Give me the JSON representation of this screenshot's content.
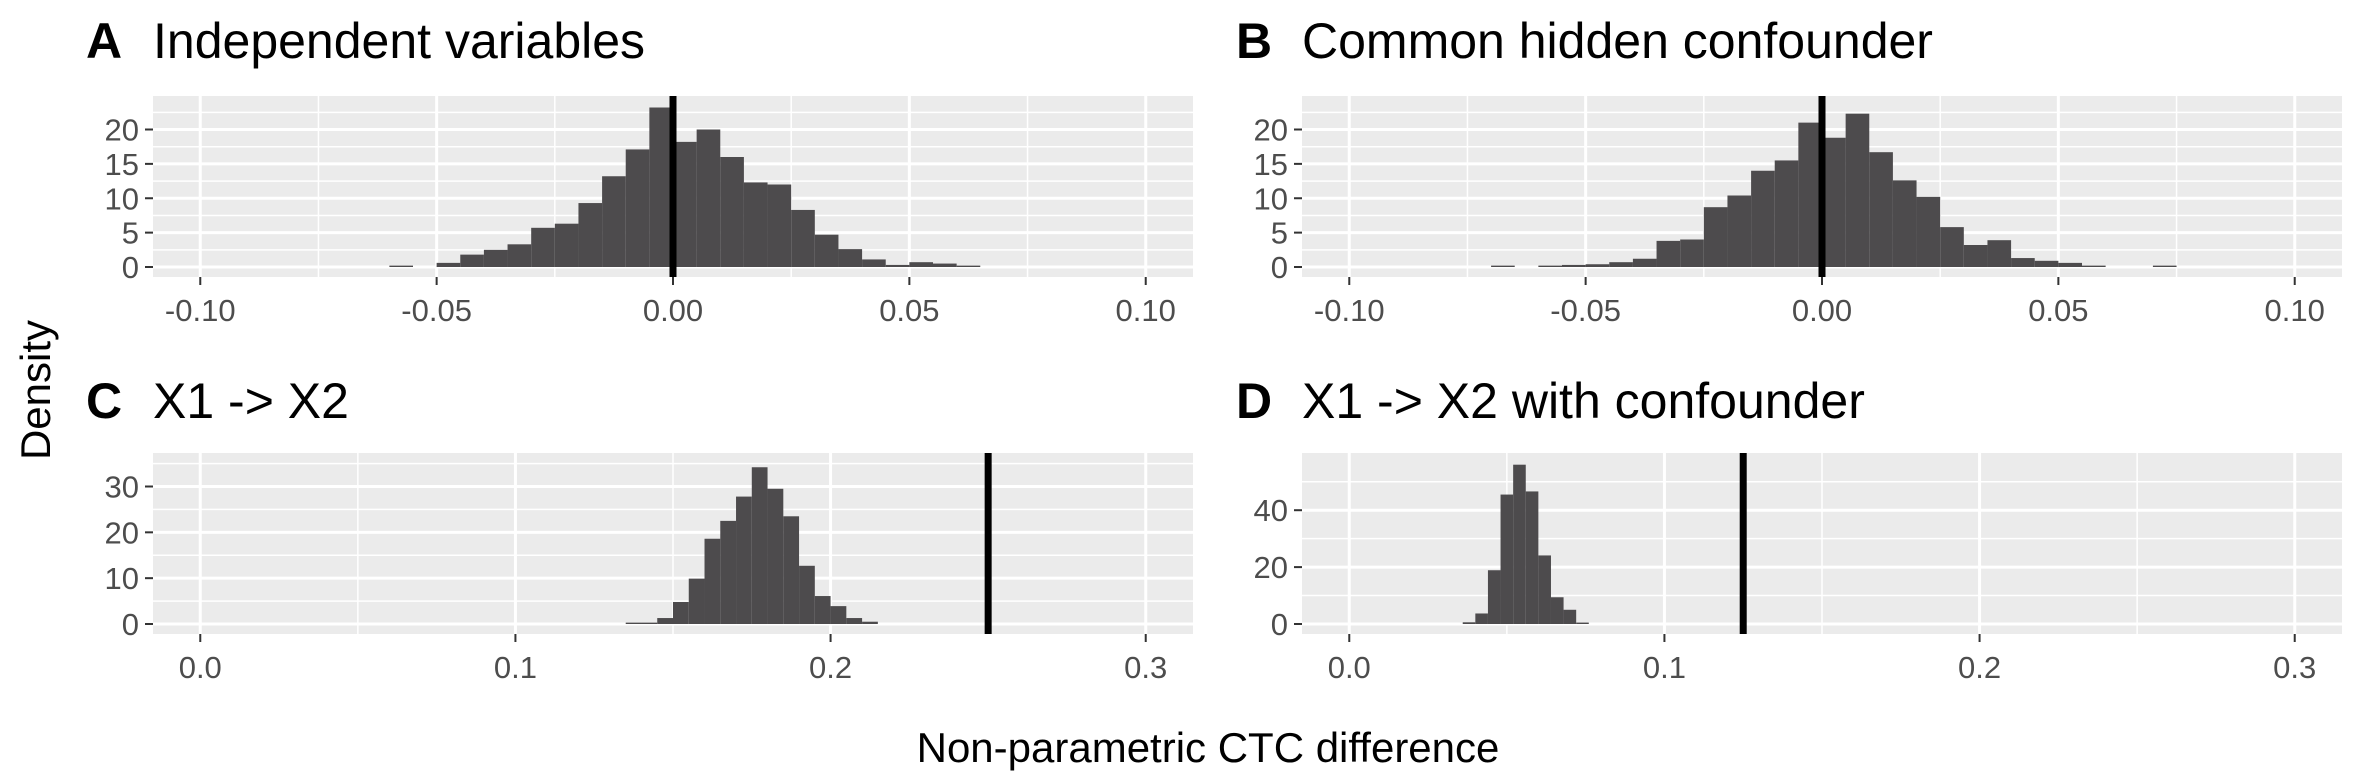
{
  "figure": {
    "ylabel": "Density",
    "xlabel": "Non-parametric CTC difference"
  },
  "colors": {
    "panel_bg": "#ebebeb",
    "grid_major": "#ffffff",
    "bar_fill": "#4d4b4d",
    "vline": "#000000",
    "tick_text": "#4d4d4d"
  },
  "chart_data": [
    {
      "type": "bar",
      "panel": "A",
      "title": "Independent variables",
      "xlim": [
        -0.11,
        0.11
      ],
      "ylim": [
        0,
        24
      ],
      "x_ticks": [
        -0.1,
        -0.05,
        0.0,
        0.05,
        0.1
      ],
      "x_tick_labels": [
        "-0.10",
        "-0.05",
        "0.00",
        "0.05",
        "0.10"
      ],
      "y_ticks": [
        0,
        5,
        10,
        15,
        20
      ],
      "y_tick_labels": [
        "0",
        "5",
        "10",
        "15",
        "20"
      ],
      "vline": 0.0,
      "bin_width": 0.005,
      "bins": [
        [
          -0.06,
          0.2
        ],
        [
          -0.05,
          0.6
        ],
        [
          -0.045,
          1.8
        ],
        [
          -0.04,
          2.5
        ],
        [
          -0.035,
          3.3
        ],
        [
          -0.03,
          5.7
        ],
        [
          -0.025,
          6.3
        ],
        [
          -0.02,
          9.3
        ],
        [
          -0.015,
          13.2
        ],
        [
          -0.01,
          17.1
        ],
        [
          -0.005,
          23.2
        ],
        [
          0.0,
          18.2
        ],
        [
          0.005,
          20.0
        ],
        [
          0.01,
          16.0
        ],
        [
          0.015,
          12.3
        ],
        [
          0.02,
          12.0
        ],
        [
          0.025,
          8.3
        ],
        [
          0.03,
          4.7
        ],
        [
          0.035,
          2.6
        ],
        [
          0.04,
          1.1
        ],
        [
          0.045,
          0.3
        ],
        [
          0.05,
          0.7
        ],
        [
          0.055,
          0.5
        ],
        [
          0.06,
          0.2
        ]
      ]
    },
    {
      "type": "bar",
      "panel": "B",
      "title": "Common hidden confounder",
      "xlim": [
        -0.11,
        0.11
      ],
      "ylim": [
        0,
        24
      ],
      "x_ticks": [
        -0.1,
        -0.05,
        0.0,
        0.05,
        0.1
      ],
      "x_tick_labels": [
        "-0.10",
        "-0.05",
        "0.00",
        "0.05",
        "0.10"
      ],
      "y_ticks": [
        0,
        5,
        10,
        15,
        20
      ],
      "y_tick_labels": [
        "0",
        "5",
        "10",
        "15",
        "20"
      ],
      "vline": 0.0,
      "bin_width": 0.005,
      "bins": [
        [
          -0.07,
          0.2
        ],
        [
          -0.06,
          0.2
        ],
        [
          -0.055,
          0.3
        ],
        [
          -0.05,
          0.4
        ],
        [
          -0.045,
          0.7
        ],
        [
          -0.04,
          1.2
        ],
        [
          -0.035,
          3.8
        ],
        [
          -0.03,
          4.0
        ],
        [
          -0.025,
          8.7
        ],
        [
          -0.02,
          10.4
        ],
        [
          -0.015,
          14.0
        ],
        [
          -0.01,
          15.5
        ],
        [
          -0.005,
          21.0
        ],
        [
          0.0,
          18.8
        ],
        [
          0.005,
          22.3
        ],
        [
          0.01,
          16.7
        ],
        [
          0.015,
          12.6
        ],
        [
          0.02,
          10.2
        ],
        [
          0.025,
          5.8
        ],
        [
          0.03,
          3.2
        ],
        [
          0.035,
          3.9
        ],
        [
          0.04,
          1.3
        ],
        [
          0.045,
          0.9
        ],
        [
          0.05,
          0.6
        ],
        [
          0.055,
          0.2
        ],
        [
          0.07,
          0.2
        ]
      ]
    },
    {
      "type": "bar",
      "panel": "C",
      "title": "X1 -> X2",
      "xlim": [
        -0.015,
        0.315
      ],
      "ylim": [
        0,
        36
      ],
      "x_ticks": [
        0.0,
        0.1,
        0.2,
        0.3
      ],
      "x_tick_labels": [
        "0.0",
        "0.1",
        "0.2",
        "0.3"
      ],
      "y_ticks": [
        0,
        10,
        20,
        30
      ],
      "y_tick_labels": [
        "0",
        "10",
        "20",
        "30"
      ],
      "vline": 0.25,
      "bin_width": 0.005,
      "bins": [
        [
          0.135,
          0.3
        ],
        [
          0.14,
          0.3
        ],
        [
          0.145,
          1.3
        ],
        [
          0.15,
          4.8
        ],
        [
          0.155,
          9.9
        ],
        [
          0.16,
          18.6
        ],
        [
          0.165,
          22.5
        ],
        [
          0.17,
          27.8
        ],
        [
          0.175,
          34.2
        ],
        [
          0.18,
          29.5
        ],
        [
          0.185,
          23.5
        ],
        [
          0.19,
          12.7
        ],
        [
          0.195,
          6.1
        ],
        [
          0.2,
          3.9
        ],
        [
          0.205,
          1.3
        ],
        [
          0.21,
          0.5
        ]
      ]
    },
    {
      "type": "bar",
      "panel": "D",
      "title": "X1 -> X2 with confounder",
      "xlim": [
        -0.015,
        0.315
      ],
      "ylim": [
        0,
        58
      ],
      "x_ticks": [
        0.0,
        0.1,
        0.2,
        0.3
      ],
      "x_tick_labels": [
        "0.0",
        "0.1",
        "0.2",
        "0.3"
      ],
      "y_ticks": [
        0,
        20,
        40
      ],
      "y_tick_labels": [
        "0",
        "20",
        "40"
      ],
      "vline": 0.125,
      "bin_width": 0.004,
      "bins": [
        [
          0.036,
          0.6
        ],
        [
          0.04,
          3.7
        ],
        [
          0.044,
          18.9
        ],
        [
          0.048,
          45.5
        ],
        [
          0.052,
          56.0
        ],
        [
          0.056,
          46.6
        ],
        [
          0.06,
          24.1
        ],
        [
          0.064,
          9.4
        ],
        [
          0.068,
          5.0
        ],
        [
          0.072,
          0.5
        ]
      ]
    }
  ]
}
